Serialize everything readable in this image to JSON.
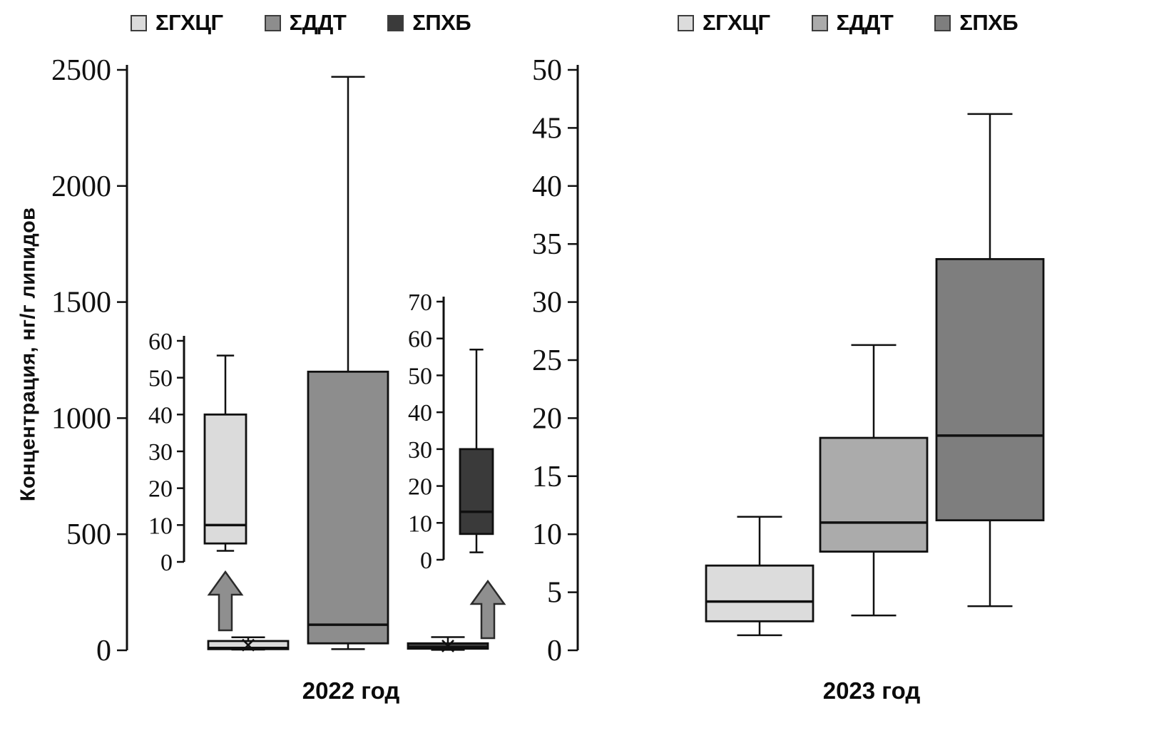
{
  "chart_data": {
    "type": "boxplot",
    "ylabel": "Концентрация, нг/г липидов",
    "grid": false,
    "legend_position": "top",
    "panels": [
      {
        "title": "2022 год",
        "axis": {
          "min": 0,
          "max": 2500,
          "tick_step": 500
        },
        "legend": [
          {
            "label": "ΣГХЦГ",
            "color": "#dbdbdb"
          },
          {
            "label": "ΣДДТ",
            "color": "#8d8d8d"
          },
          {
            "label": "ΣПХБ",
            "color": "#3a3a3a"
          }
        ],
        "series": [
          {
            "name": "ΣГХЦГ",
            "color": "#dbdbdb",
            "low": 3,
            "q1": 5,
            "median": 10,
            "q3": 40,
            "high": 56,
            "mean_marker": true
          },
          {
            "name": "ΣДДТ",
            "color": "#8d8d8d",
            "low": 5,
            "q1": 30,
            "median": 110,
            "q3": 1200,
            "high": 2470,
            "mean_marker": false
          },
          {
            "name": "ΣПХБ",
            "color": "#3a3a3a",
            "low": 2,
            "q1": 7,
            "median": 13,
            "q3": 30,
            "high": 57,
            "mean_marker": true
          }
        ],
        "insets": [
          {
            "series": "ΣГХЦГ",
            "axis": {
              "min": 0,
              "max": 60,
              "tick_step": 10
            }
          },
          {
            "series": "ΣПХБ",
            "axis": {
              "min": 0,
              "max": 70,
              "tick_step": 10
            }
          }
        ]
      },
      {
        "title": "2023 год",
        "axis": {
          "min": 0,
          "max": 50,
          "tick_step": 5
        },
        "legend": [
          {
            "label": "ΣГХЦГ",
            "color": "#dcdcdc"
          },
          {
            "label": "ΣДДТ",
            "color": "#ababab"
          },
          {
            "label": "ΣПХБ",
            "color": "#7e7e7e"
          }
        ],
        "series": [
          {
            "name": "ΣГХЦГ",
            "color": "#dcdcdc",
            "low": 1.3,
            "q1": 2.5,
            "median": 4.2,
            "q3": 7.3,
            "high": 11.5,
            "mean_marker": false
          },
          {
            "name": "ΣДДТ",
            "color": "#ababab",
            "low": 3,
            "q1": 8.5,
            "median": 11,
            "q3": 18.3,
            "high": 26.3,
            "mean_marker": false
          },
          {
            "name": "ΣПХБ",
            "color": "#7e7e7e",
            "low": 3.8,
            "q1": 11.2,
            "median": 18.5,
            "q3": 33.7,
            "high": 46.2,
            "mean_marker": false
          }
        ],
        "insets": []
      }
    ]
  }
}
